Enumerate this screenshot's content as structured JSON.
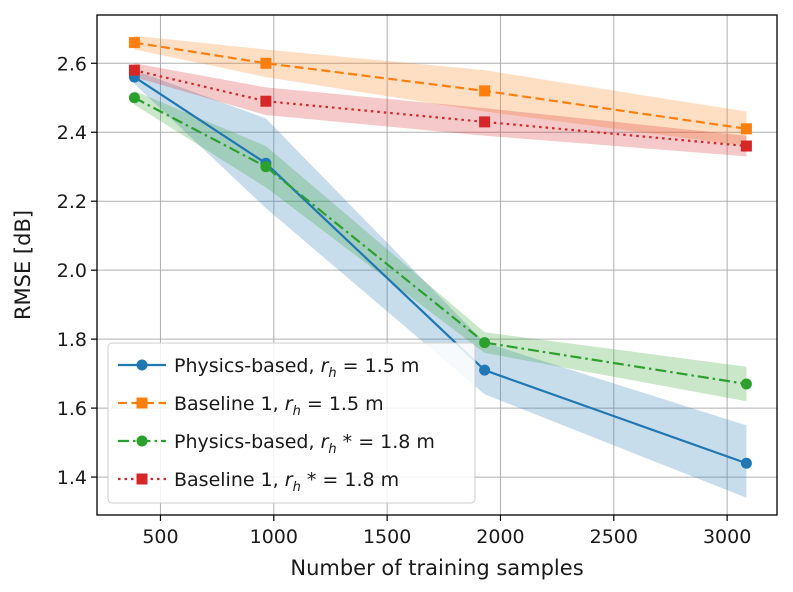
{
  "chart_data": {
    "type": "line",
    "xlabel": "Number of training samples",
    "ylabel": "RMSE [dB]",
    "xlim": [
      220,
      3220
    ],
    "ylim": [
      1.29,
      2.74
    ],
    "xticks": [
      500,
      1000,
      1500,
      2000,
      2500,
      3000
    ],
    "yticks": [
      1.4,
      1.6,
      1.8,
      2.0,
      2.2,
      2.4,
      2.6
    ],
    "ytick_labels": [
      "1.4",
      "1.6",
      "1.8",
      "2.0",
      "2.2",
      "2.4",
      "2.6"
    ],
    "grid": true,
    "legend_position": "lower-left",
    "x": [
      385,
      965,
      1930,
      3085
    ],
    "series": [
      {
        "name": "Physics-based, r_h = 1.5 m",
        "legend": {
          "pre": "Physics-based, ",
          "var": "r",
          "sub": "h",
          "post": " =  1.5 m"
        },
        "color": "#1f77b4",
        "linestyle": "solid",
        "marker": "circle",
        "values": [
          2.56,
          2.31,
          1.71,
          1.44
        ],
        "band_lower": [
          2.54,
          2.18,
          1.64,
          1.34
        ],
        "band_upper": [
          2.58,
          2.44,
          1.79,
          1.55
        ]
      },
      {
        "name": "Baseline 1, r_h = 1.5 m",
        "legend": {
          "pre": "Baseline 1, ",
          "var": "r",
          "sub": "h",
          "post": " =  1.5 m"
        },
        "color": "#ff7f0e",
        "linestyle": "dashed",
        "marker": "square",
        "values": [
          2.66,
          2.6,
          2.52,
          2.41
        ],
        "band_lower": [
          2.64,
          2.56,
          2.46,
          2.36
        ],
        "band_upper": [
          2.68,
          2.64,
          2.58,
          2.46
        ]
      },
      {
        "name": "Physics-based, r_h* = 1.8 m",
        "legend": {
          "pre": "Physics-based, ",
          "var": "r",
          "sub": "h",
          "post": " *  =  1.8 m"
        },
        "color": "#2ca02c",
        "linestyle": "dashdot",
        "marker": "circle",
        "values": [
          2.5,
          2.3,
          1.79,
          1.67
        ],
        "band_lower": [
          2.48,
          2.24,
          1.76,
          1.62
        ],
        "band_upper": [
          2.52,
          2.36,
          1.82,
          1.72
        ]
      },
      {
        "name": "Baseline 1, r_h* = 1.8 m",
        "legend": {
          "pre": "Baseline 1, ",
          "var": "r",
          "sub": "h",
          "post": " *  =  1.8 m"
        },
        "color": "#d62728",
        "linestyle": "dotted",
        "marker": "square",
        "values": [
          2.58,
          2.49,
          2.43,
          2.36
        ],
        "band_lower": [
          2.56,
          2.45,
          2.39,
          2.33
        ],
        "band_upper": [
          2.6,
          2.53,
          2.47,
          2.39
        ]
      }
    ]
  }
}
